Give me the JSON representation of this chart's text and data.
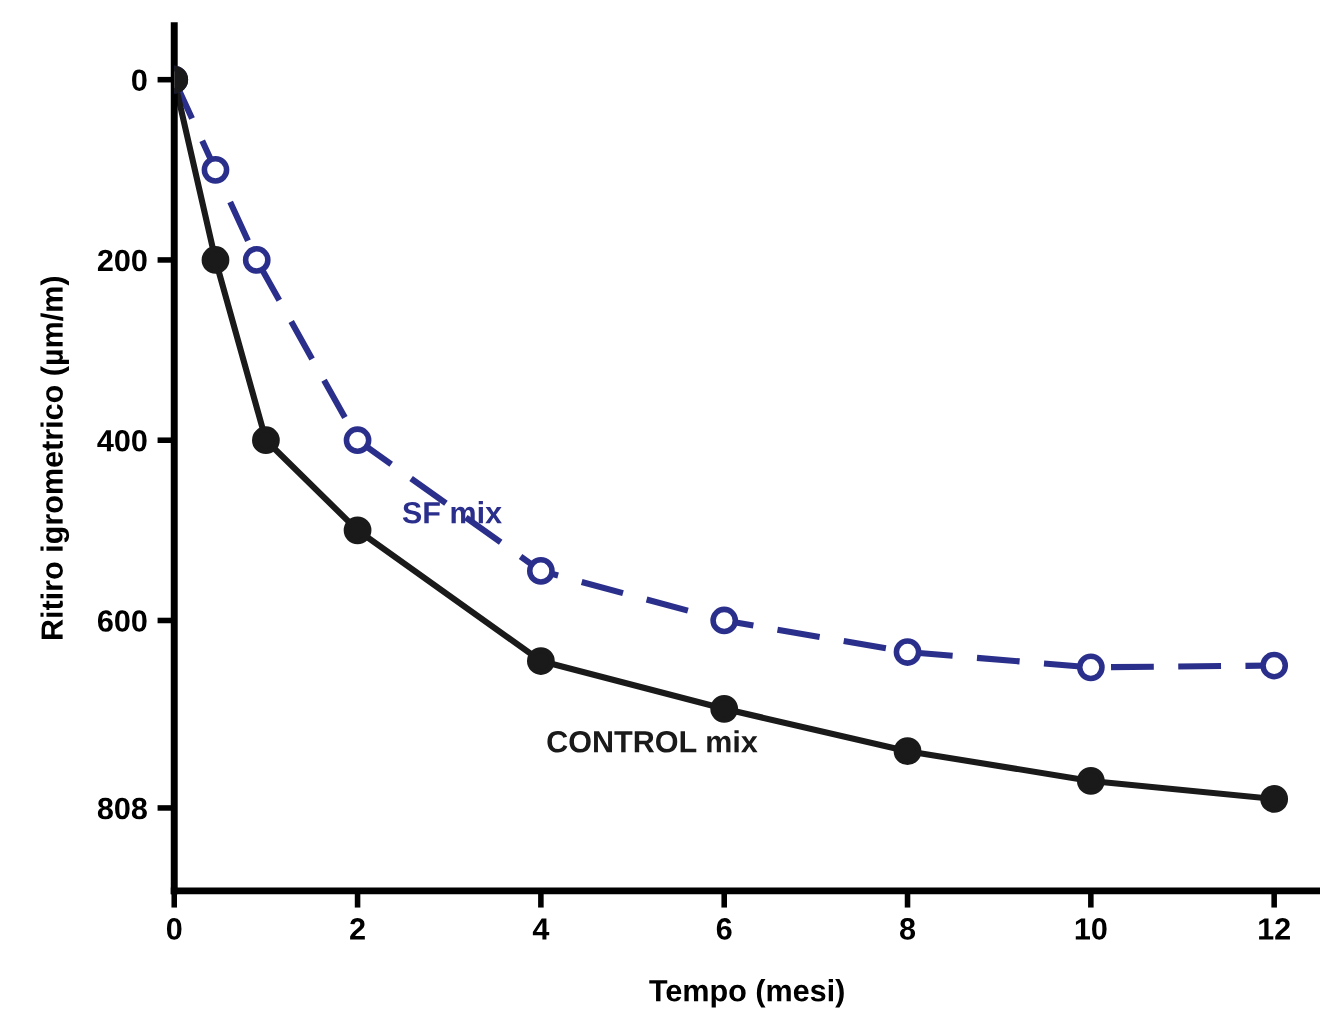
{
  "chart_data": {
    "type": "line",
    "xlabel": "Tempo (mesi)",
    "ylabel": "Ritiro igrometrico (µm/m)",
    "xlim": [
      0,
      12.5
    ],
    "xticks": [
      0,
      2,
      4,
      6,
      8,
      10,
      12
    ],
    "ylim": [
      900,
      -60
    ],
    "yticks": [
      0,
      200,
      400,
      600,
      808
    ],
    "grid": false,
    "legend": false,
    "series": [
      {
        "name": "SF mix",
        "color": "#2b2f8c",
        "line_style": "dashed",
        "marker": "circle",
        "x": [
          0,
          0.45,
          0.9,
          2,
          4,
          6,
          8,
          10,
          12
        ],
        "values": [
          0,
          100,
          200,
          400,
          545,
          600,
          635,
          652,
          650
        ]
      },
      {
        "name": "CONTROL mix",
        "color": "#1a1a1a",
        "line_style": "solid",
        "marker": "circle",
        "x": [
          0,
          0.45,
          1,
          2,
          4,
          6,
          8,
          10,
          12
        ],
        "values": [
          0,
          200,
          400,
          500,
          645,
          698,
          745,
          778,
          798
        ]
      }
    ]
  }
}
